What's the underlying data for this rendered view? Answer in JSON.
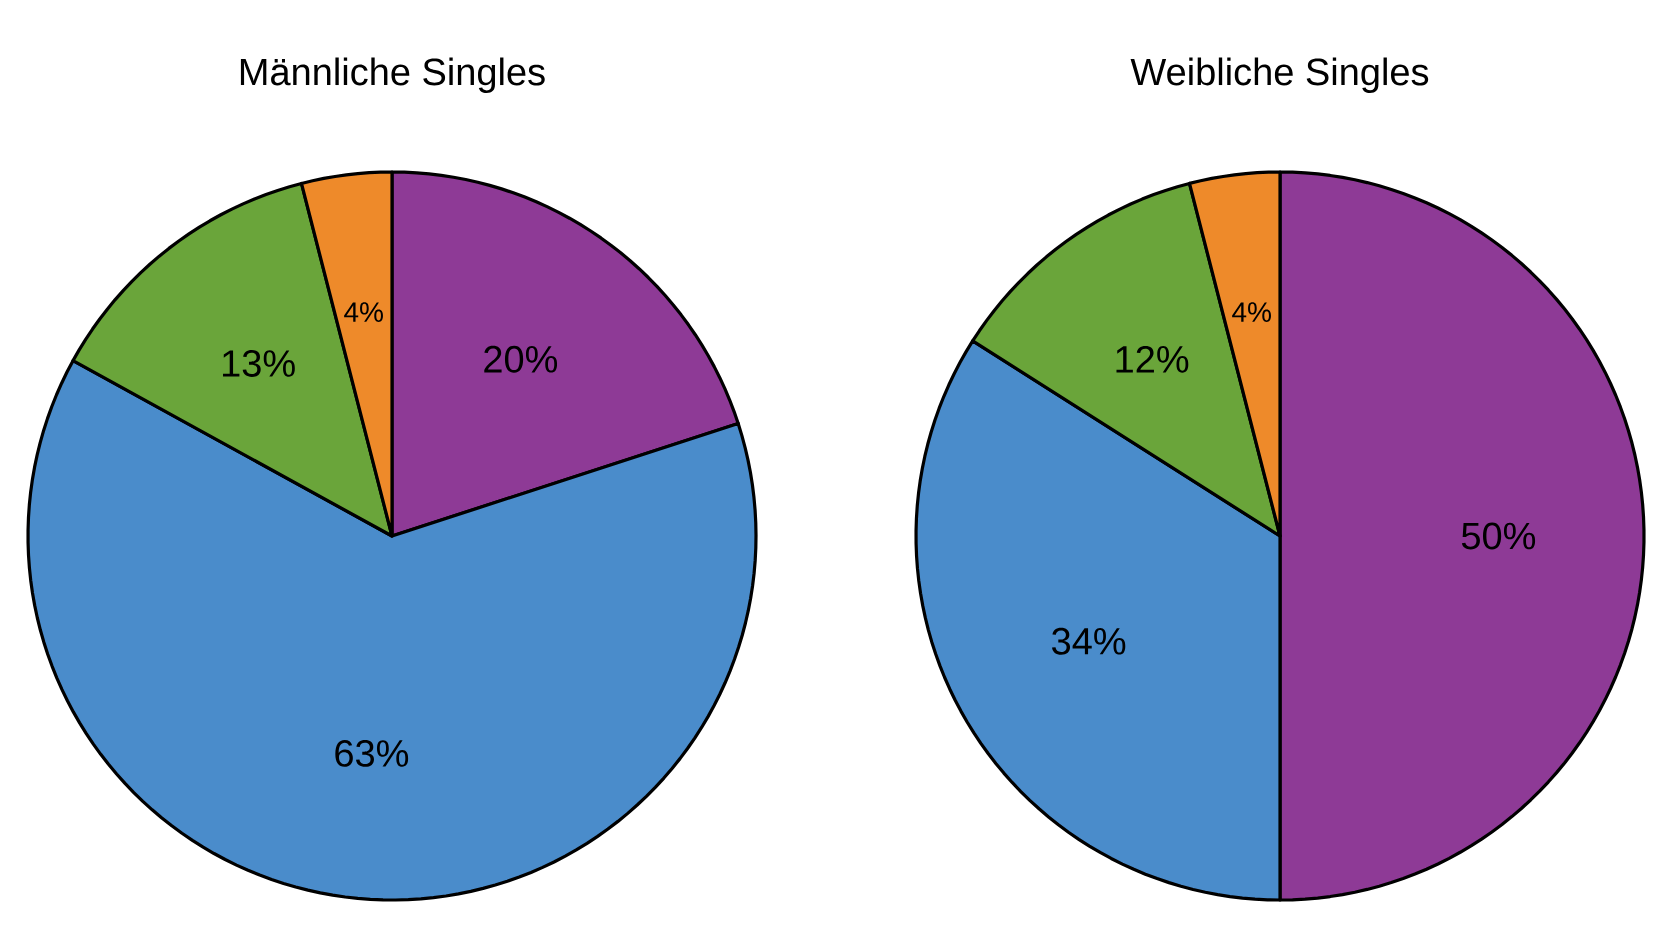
{
  "chart_data": [
    {
      "type": "pie",
      "title": "Männliche Singles",
      "categories": [
        null,
        null,
        null,
        null
      ],
      "values": [
        20,
        63,
        13,
        4
      ],
      "colors": [
        "#8e3a96",
        "#4a8ccb",
        "#6aa53a",
        "#ee8a2a"
      ],
      "value_labels": [
        "20%",
        "63%",
        "13%",
        "4%"
      ]
    },
    {
      "type": "pie",
      "title": "Weibliche Singles",
      "categories": [
        null,
        null,
        null,
        null
      ],
      "values": [
        50,
        34,
        12,
        4
      ],
      "colors": [
        "#8e3a96",
        "#4a8ccb",
        "#6aa53a",
        "#ee8a2a"
      ],
      "value_labels": [
        "50%",
        "34%",
        "12%",
        "4%"
      ]
    }
  ]
}
